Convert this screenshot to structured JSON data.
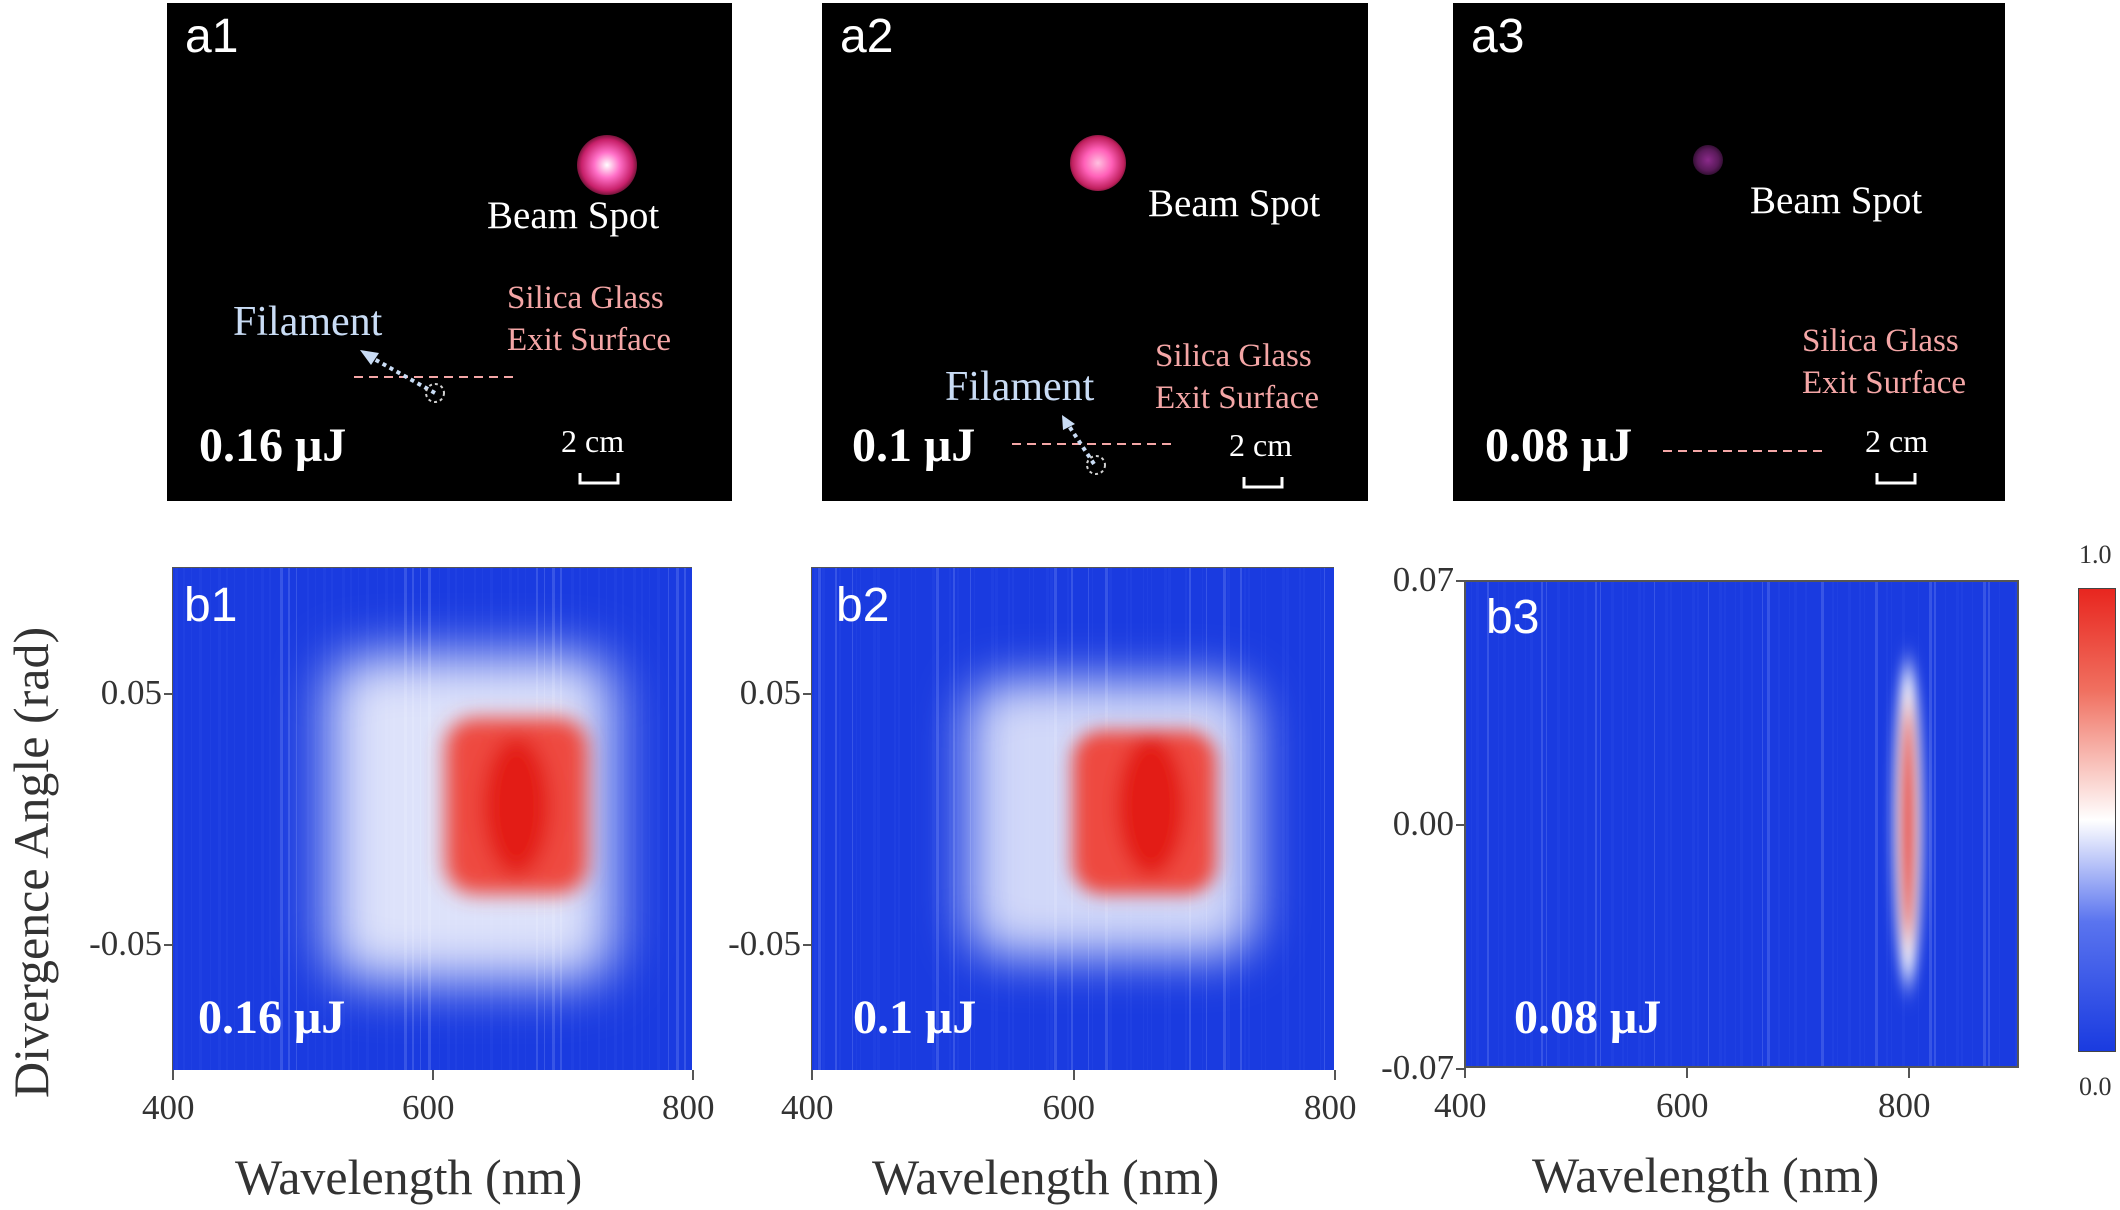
{
  "photo_panels": [
    {
      "label": "a1",
      "beam_spot": "Beam Spot",
      "silica_line1": "Silica Glass",
      "silica_line2": "Exit Surface",
      "filament": "Filament",
      "energy": "0.16 μJ",
      "scale": "2 cm"
    },
    {
      "label": "a2",
      "beam_spot": "Beam Spot",
      "silica_line1": "Silica Glass",
      "silica_line2": "Exit Surface",
      "filament": "Filament",
      "energy": "0.1 μJ",
      "scale": "2 cm"
    },
    {
      "label": "a3",
      "beam_spot": "Beam Spot",
      "silica_line1": "Silica Glass",
      "silica_line2": "Exit Surface",
      "energy": "0.08 μJ",
      "scale": "2 cm"
    }
  ],
  "colors": {
    "spot_pink": "#ff66c4",
    "spot_purple": "#8a2a8a",
    "silica_text": "#f4a6a6",
    "filament_text": "#c9dcf5",
    "heat_low": "#1a3be0",
    "heat_mid": "#ffffff",
    "heat_high": "#e8261f"
  },
  "chart_data": [
    {
      "type": "heatmap",
      "panel": "b1",
      "energy_label": "0.16 μJ",
      "xlabel": "Wavelength (nm)",
      "ylabel": "Divergence Angle (rad)",
      "xlim": [
        400,
        800
      ],
      "ylim": [
        -0.1,
        0.1
      ],
      "xticks": [
        400,
        600,
        800
      ],
      "yticks": [
        0.05,
        -0.05
      ],
      "hot_region": {
        "wavelength": [
          610,
          720
        ],
        "angle": [
          -0.03,
          0.04
        ],
        "peak_wavelength": 665,
        "peak_angle": 0.005
      },
      "halo_region": {
        "wavelength": [
          520,
          740
        ],
        "angle": [
          -0.065,
          0.065
        ]
      }
    },
    {
      "type": "heatmap",
      "panel": "b2",
      "energy_label": "0.1 μJ",
      "xlabel": "Wavelength (nm)",
      "xlim": [
        400,
        800
      ],
      "ylim": [
        -0.1,
        0.1
      ],
      "xticks": [
        400,
        600,
        800
      ],
      "yticks": [
        0.05,
        -0.05
      ],
      "hot_region": {
        "wavelength": [
          600,
          710
        ],
        "angle": [
          -0.03,
          0.035
        ],
        "peak_wavelength": 660,
        "peak_angle": 0.005
      },
      "halo_region": {
        "wavelength": [
          520,
          740
        ],
        "angle": [
          -0.055,
          0.055
        ]
      }
    },
    {
      "type": "heatmap",
      "panel": "b3",
      "energy_label": "0.08 μJ",
      "xlabel": "Wavelength (nm)",
      "xlim": [
        400,
        900
      ],
      "ylim": [
        -0.07,
        0.07
      ],
      "xticks": [
        400,
        600,
        800
      ],
      "yticks": [
        0.07,
        0.0,
        -0.07
      ],
      "ytick_labels": [
        "0.07",
        "0.00",
        "-0.07"
      ],
      "hot_region": {
        "wavelength": [
          795,
          805
        ],
        "angle": [
          -0.035,
          0.035
        ],
        "peak_wavelength": 800,
        "peak_angle": 0.0
      }
    }
  ],
  "colorbar": {
    "max_label": "1.0",
    "min_label": "0.0"
  }
}
